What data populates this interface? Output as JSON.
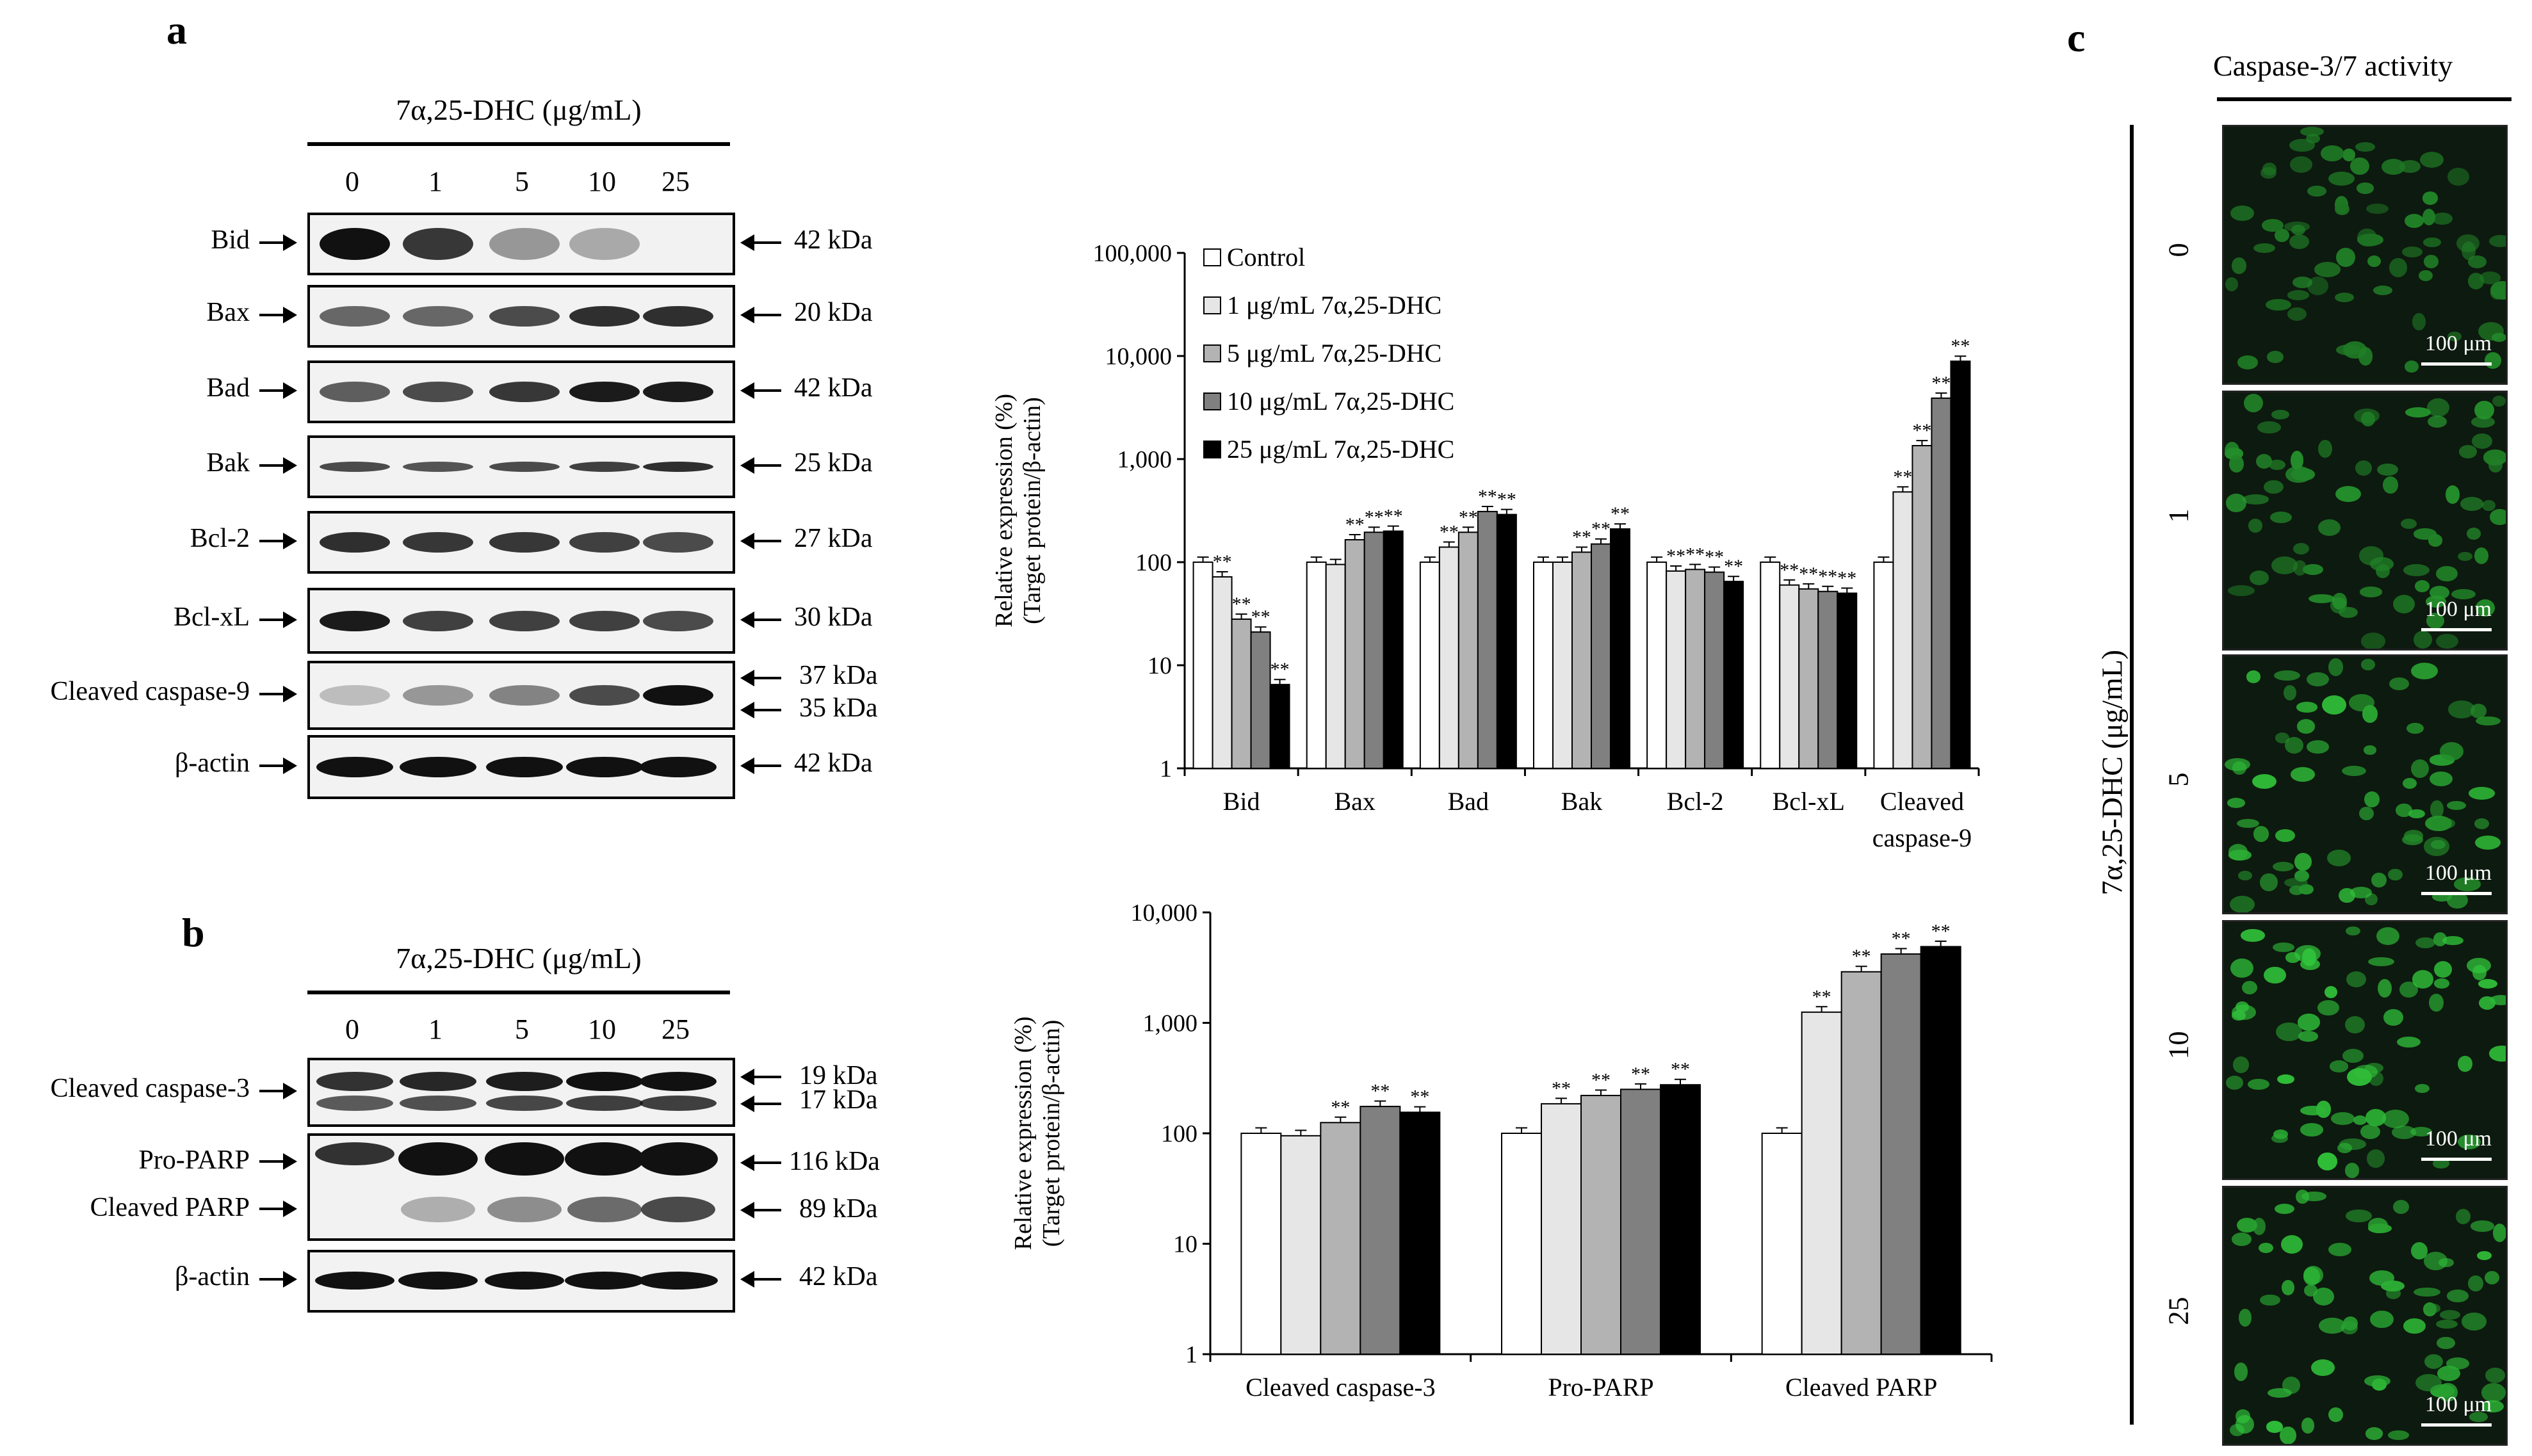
{
  "panels": {
    "a": "a",
    "b": "b",
    "c": "c"
  },
  "blot_a": {
    "header": "7α,25-DHC (μg/mL)",
    "lanes": [
      "0",
      "1",
      "5",
      "10",
      "25"
    ],
    "rows": [
      {
        "protein": "Bid",
        "kda": [
          "42 kDa"
        ],
        "intensity": [
          1.0,
          0.8,
          0.3,
          0.2,
          0.0
        ]
      },
      {
        "protein": "Bax",
        "kda": [
          "20 kDa"
        ],
        "intensity": [
          0.55,
          0.55,
          0.7,
          0.85,
          0.85
        ]
      },
      {
        "protein": "Bad",
        "kda": [
          "42 kDa"
        ],
        "intensity": [
          0.6,
          0.7,
          0.8,
          0.95,
          0.95
        ]
      },
      {
        "protein": "Bak",
        "kda": [
          "25 kDa"
        ],
        "intensity": [
          0.7,
          0.65,
          0.7,
          0.75,
          0.85
        ]
      },
      {
        "protein": "Bcl-2",
        "kda": [
          "27 kDa"
        ],
        "intensity": [
          0.85,
          0.8,
          0.8,
          0.75,
          0.7
        ]
      },
      {
        "protein": "Bcl-xL",
        "kda": [
          "30 kDa"
        ],
        "intensity": [
          0.95,
          0.75,
          0.75,
          0.75,
          0.7
        ]
      },
      {
        "protein": "Cleaved caspase-9",
        "kda": [
          "37 kDa",
          "35 kDa"
        ],
        "intensity": [
          0.1,
          0.3,
          0.4,
          0.7,
          1.0
        ]
      },
      {
        "protein": "β-actin",
        "kda": [
          "42 kDa"
        ],
        "intensity": [
          1.0,
          1.0,
          1.0,
          1.0,
          1.0
        ]
      }
    ]
  },
  "blot_b": {
    "header": "7α,25-DHC (μg/mL)",
    "lanes": [
      "0",
      "1",
      "5",
      "10",
      "25"
    ],
    "rows": [
      {
        "protein": "Cleaved caspase-3",
        "kda": [
          "19 kDa",
          "17 kDa"
        ]
      },
      {
        "protein": "Pro-PARP",
        "protein2": "Cleaved PARP",
        "kda": [
          "116 kDa",
          "89 kDa"
        ]
      },
      {
        "protein": "β-actin",
        "kda": [
          "42 kDa"
        ]
      }
    ]
  },
  "chart_data": [
    {
      "type": "bar",
      "ylabel": "Relative expression (%) (Target protein/β-actin)",
      "yscale": "log",
      "ylim": [
        1,
        100000
      ],
      "yticks": [
        "1",
        "10",
        "100",
        "1,000",
        "10,000",
        "100,000"
      ],
      "categories": [
        "Bid",
        "Bax",
        "Bad",
        "Bak",
        "Bcl-2",
        "Bcl-xL",
        "Cleaved caspase-9"
      ],
      "legend_position": "top-left",
      "series": [
        {
          "name": "Control",
          "color": "#ffffff",
          "values": [
            100,
            100,
            100,
            100,
            100,
            100,
            100
          ]
        },
        {
          "name": "1 μg/mL 7α,25-DHC",
          "color": "#e6e6e6",
          "values": [
            72,
            95,
            140,
            100,
            82,
            60,
            480
          ]
        },
        {
          "name": "5 μg/mL 7α,25-DHC",
          "color": "#b3b3b3",
          "values": [
            28,
            165,
            195,
            125,
            85,
            55,
            1350
          ]
        },
        {
          "name": "10 μg/mL 7α,25-DHC",
          "color": "#808080",
          "values": [
            21,
            195,
            310,
            150,
            80,
            52,
            3900
          ]
        },
        {
          "name": "25 μg/mL 7α,25-DHC",
          "color": "#000000",
          "values": [
            6.5,
            200,
            290,
            210,
            65,
            50,
            8900
          ]
        }
      ],
      "significance": [
        [
          "",
          "**",
          "**",
          "**",
          "**"
        ],
        [
          "",
          "",
          "**",
          "**",
          "**"
        ],
        [
          "",
          "**",
          "**",
          "**",
          "**"
        ],
        [
          "",
          "",
          "**",
          "**",
          "**"
        ],
        [
          "",
          "**",
          "**",
          "**",
          "**"
        ],
        [
          "",
          "**",
          "**",
          "**",
          "**"
        ],
        [
          "",
          "**",
          "**",
          "**",
          "**"
        ]
      ]
    },
    {
      "type": "bar",
      "ylabel": "Relative expression (%) (Target protein/β-actin)",
      "yscale": "log",
      "ylim": [
        1,
        10000
      ],
      "yticks": [
        "1",
        "10",
        "100",
        "1,000",
        "10,000"
      ],
      "categories": [
        "Cleaved caspase-3",
        "Pro-PARP",
        "Cleaved PARP"
      ],
      "series": [
        {
          "name": "Control",
          "color": "#ffffff",
          "values": [
            100,
            100,
            100
          ]
        },
        {
          "name": "1 μg/mL 7α,25-DHC",
          "color": "#e6e6e6",
          "values": [
            95,
            185,
            1250
          ]
        },
        {
          "name": "5 μg/mL 7α,25-DHC",
          "color": "#b3b3b3",
          "values": [
            125,
            220,
            2900
          ]
        },
        {
          "name": "10 μg/mL 7α,25-DHC",
          "color": "#808080",
          "values": [
            175,
            250,
            4200
          ]
        },
        {
          "name": "25 μg/mL 7α,25-DHC",
          "color": "#000000",
          "values": [
            155,
            275,
            4900
          ]
        }
      ],
      "significance": [
        [
          "",
          "",
          "**",
          "**",
          "**"
        ],
        [
          "",
          "**",
          "**",
          "**",
          "**"
        ],
        [
          "",
          "**",
          "**",
          "**",
          "**"
        ]
      ]
    }
  ],
  "microscopy": {
    "title": "Caspase-3/7 activity",
    "axis_label": "7α,25-DHC (μg/mL)",
    "concentrations": [
      "0",
      "1",
      "5",
      "10",
      "25"
    ],
    "brightness": [
      0.45,
      0.55,
      0.8,
      0.9,
      0.85
    ],
    "scale_label": "100 μm"
  }
}
